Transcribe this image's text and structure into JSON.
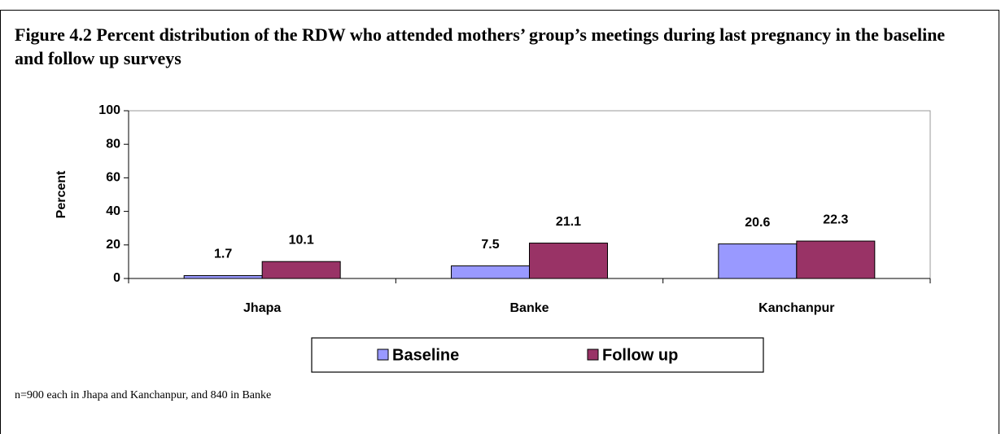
{
  "chart_data": {
    "type": "bar",
    "title": "Figure 4.2 Percent distribution of the RDW who attended mothers’ group’s meetings during last pregnancy in the baseline and follow up surveys",
    "ylabel": "Percent",
    "categories": [
      "Jhapa",
      "Banke",
      "Kanchanpur"
    ],
    "series": [
      {
        "name": "Baseline",
        "color": "#9999ff",
        "values": [
          1.7,
          7.5,
          20.6
        ]
      },
      {
        "name": "Follow up",
        "color": "#993366",
        "values": [
          10.1,
          21.1,
          22.3
        ]
      }
    ],
    "ylim": [
      0,
      100
    ],
    "yticks": [
      0,
      20,
      40,
      60,
      80,
      100
    ],
    "legend": "bottom",
    "note": "n=900 each in Jhapa and Kanchanpur, and 840 in Banke"
  }
}
